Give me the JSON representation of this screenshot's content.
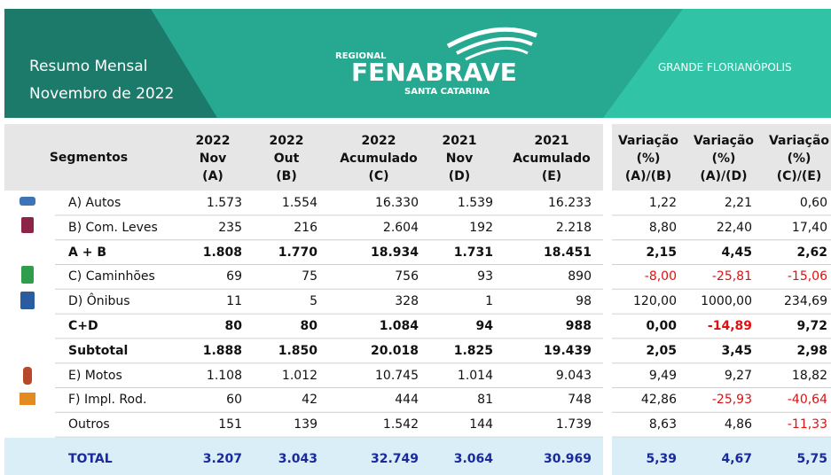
{
  "header": {
    "title": "Resumo Mensal",
    "subtitle": "Novembro de 2022",
    "logo": {
      "top": "REGIONAL",
      "main": "FENABRAVE",
      "bottom": "SANTA CATARINA"
    },
    "region": "GRANDE FLORIANÓPOLIS"
  },
  "table": {
    "columns": [
      [
        "Segmentos"
      ],
      [
        "2022",
        "Nov",
        "(A)"
      ],
      [
        "2022",
        "Out",
        "(B)"
      ],
      [
        "2022",
        "Acumulado",
        "(C)"
      ],
      [
        "2021",
        "Nov",
        "(D)"
      ],
      [
        "2021",
        "Acumulado",
        "(E)"
      ],
      [
        "Variação",
        "(%)",
        "(A)/(B)"
      ],
      [
        "Variação",
        "(%)",
        "(A)/(D)"
      ],
      [
        "Variação",
        "(%)",
        "(C)/(E)"
      ]
    ],
    "rows": [
      {
        "label": "A) Autos",
        "style": "normal",
        "cells": [
          "1.573",
          "1.554",
          "16.330",
          "1.539",
          "16.233",
          "1,22",
          "2,21",
          "0,60"
        ]
      },
      {
        "label": "B) Com. Leves",
        "style": "normal",
        "cells": [
          "235",
          "216",
          "2.604",
          "192",
          "2.218",
          "8,80",
          "22,40",
          "17,40"
        ]
      },
      {
        "label": "A + B",
        "style": "bold",
        "cells": [
          "1.808",
          "1.770",
          "18.934",
          "1.731",
          "18.451",
          "2,15",
          "4,45",
          "2,62"
        ]
      },
      {
        "label": "C) Caminhões",
        "style": "normal",
        "cells": [
          "69",
          "75",
          "756",
          "93",
          "890",
          "-8,00",
          "-25,81",
          "-15,06"
        ]
      },
      {
        "label": "D) Ônibus",
        "style": "normal",
        "cells": [
          "11",
          "5",
          "328",
          "1",
          "98",
          "120,00",
          "1000,00",
          "234,69"
        ]
      },
      {
        "label": "C+D",
        "style": "bold",
        "cells": [
          "80",
          "80",
          "1.084",
          "94",
          "988",
          "0,00",
          "-14,89",
          "9,72"
        ]
      },
      {
        "label": "Subtotal",
        "style": "bold",
        "cells": [
          "1.888",
          "1.850",
          "20.018",
          "1.825",
          "19.439",
          "2,05",
          "3,45",
          "2,98"
        ]
      },
      {
        "label": "E) Motos",
        "style": "normal",
        "cells": [
          "1.108",
          "1.012",
          "10.745",
          "1.014",
          "9.043",
          "9,49",
          "9,27",
          "18,82"
        ]
      },
      {
        "label": "F) Impl. Rod.",
        "style": "normal",
        "cells": [
          "60",
          "42",
          "444",
          "81",
          "748",
          "42,86",
          "-25,93",
          "-40,64"
        ]
      },
      {
        "label": "Outros",
        "style": "normal",
        "cells": [
          "151",
          "139",
          "1.542",
          "144",
          "1.739",
          "8,63",
          "4,86",
          "-11,33"
        ]
      },
      {
        "label": "TOTAL",
        "style": "total",
        "cells": [
          "3.207",
          "3.043",
          "32.749",
          "3.064",
          "30.969",
          "5,39",
          "4,67",
          "5,75"
        ]
      }
    ]
  }
}
